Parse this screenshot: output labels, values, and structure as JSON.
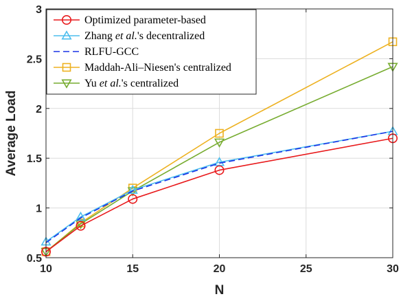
{
  "chart_data": {
    "type": "line",
    "xlabel": "N",
    "ylabel": "Average Load",
    "xlim": [
      10,
      30
    ],
    "ylim": [
      0.5,
      3
    ],
    "x_ticks": [
      10,
      15,
      20,
      25,
      30
    ],
    "y_ticks": [
      0.5,
      1,
      1.5,
      2,
      2.5,
      3
    ],
    "y_tick_labels": [
      "0.5",
      "1",
      "1.5",
      "2",
      "2.5",
      "3"
    ],
    "grid": true,
    "legend_position": "top-left",
    "series": [
      {
        "name": "Optimized parameter-based",
        "legend_parts": [
          {
            "text": "Optimized parameter-based",
            "italic": false
          }
        ],
        "color": "#e8191b",
        "marker": "circle",
        "dash": "solid",
        "x": [
          10,
          12,
          15,
          20,
          30
        ],
        "y": [
          0.56,
          0.82,
          1.09,
          1.38,
          1.7
        ]
      },
      {
        "name": "Zhang et al.'s decentralized",
        "legend_parts": [
          {
            "text": "Zhang ",
            "italic": false
          },
          {
            "text": "et al.",
            "italic": true
          },
          {
            "text": "'s decentralized",
            "italic": false
          }
        ],
        "color": "#4dbeee",
        "marker": "triangle-up",
        "dash": "solid",
        "x": [
          10,
          12,
          15,
          20,
          30
        ],
        "y": [
          0.66,
          0.91,
          1.18,
          1.46,
          1.77
        ]
      },
      {
        "name": "RLFU-GCC",
        "legend_parts": [
          {
            "text": "RLFU-GCC",
            "italic": false
          }
        ],
        "color": "#1a33e6",
        "marker": "none",
        "dash": "dashed",
        "x": [
          10,
          12,
          15,
          20,
          30
        ],
        "y": [
          0.65,
          0.9,
          1.17,
          1.45,
          1.77
        ]
      },
      {
        "name": "Maddah-Ali–Niesen's centralized",
        "legend_parts": [
          {
            "text": "Maddah-Ali–Niesen's centralized",
            "italic": false
          }
        ],
        "color": "#edb120",
        "marker": "square",
        "dash": "solid",
        "x": [
          10,
          12,
          15,
          20,
          30
        ],
        "y": [
          0.56,
          0.85,
          1.2,
          1.75,
          2.67
        ]
      },
      {
        "name": "Yu et al.'s centralized",
        "legend_parts": [
          {
            "text": "Yu ",
            "italic": false
          },
          {
            "text": "et al.",
            "italic": true
          },
          {
            "text": "'s centralized",
            "italic": false
          }
        ],
        "color": "#77ac30",
        "marker": "triangle-down",
        "dash": "solid",
        "x": [
          10,
          12,
          15,
          20,
          30
        ],
        "y": [
          0.56,
          0.84,
          1.17,
          1.66,
          2.42
        ]
      }
    ]
  }
}
